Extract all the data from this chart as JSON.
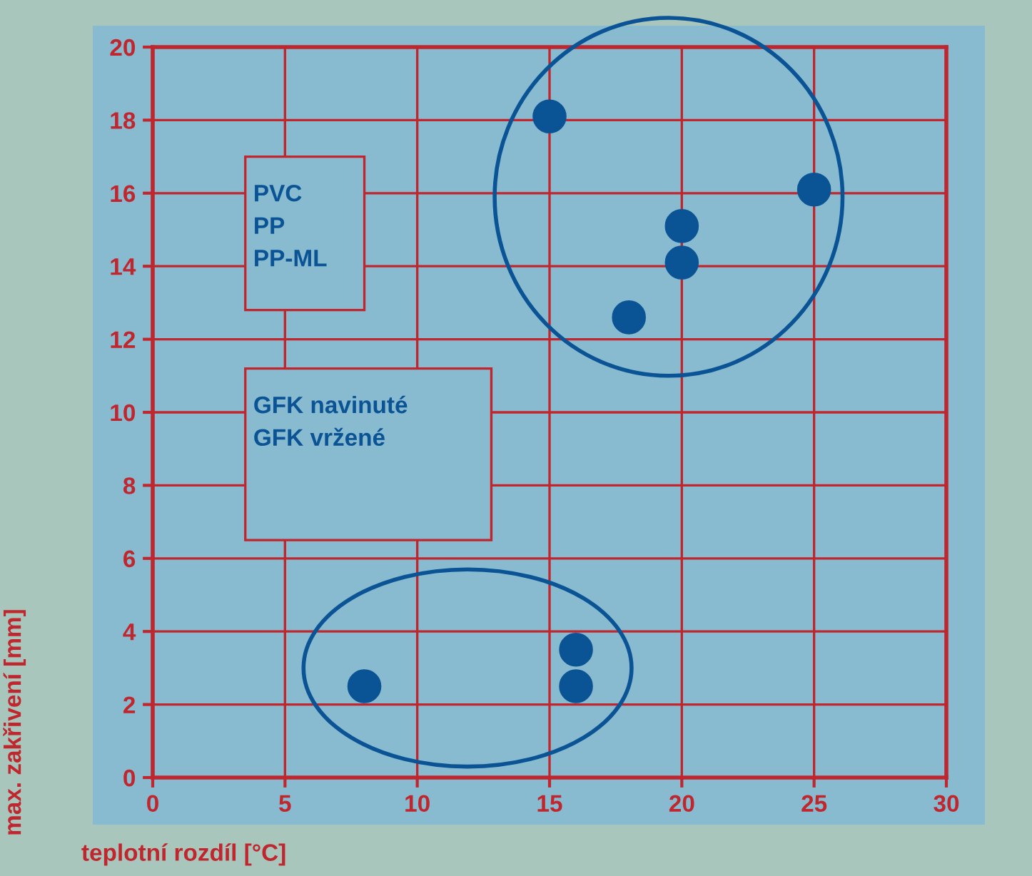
{
  "chart_data": {
    "type": "scatter",
    "xlabel": "teplotní rozdíl [°C]",
    "ylabel": "max. zakřivení [mm]",
    "x": [
      15,
      18,
      20,
      20,
      25,
      8,
      16,
      16
    ],
    "values": [
      18.1,
      12.6,
      15.1,
      14.1,
      16.1,
      2.5,
      3.5,
      2.5
    ],
    "color": "#0a5394",
    "marker": "circle",
    "xlim": [
      0,
      30
    ],
    "xticks": [
      0,
      5,
      10,
      15,
      20,
      25,
      30
    ],
    "ylim": [
      0,
      20
    ],
    "yticks": [
      0,
      2,
      4,
      6,
      8,
      10,
      12,
      14,
      16,
      18,
      20
    ],
    "grid": true,
    "annotations": [
      "PVC\nPP\nPP-ML",
      "GFK navinuté\nGFK vržené"
    ]
  }
}
